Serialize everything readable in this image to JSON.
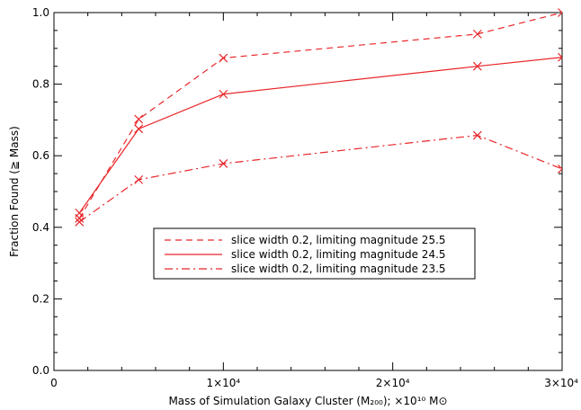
{
  "chart_data": {
    "type": "line",
    "xlabel": "Mass of Simulation Galaxy Cluster (M₂₀₀); ×10¹⁰ M⊙",
    "ylabel": "Fraction Found (≧ Mass)",
    "xlim": [
      0,
      30000
    ],
    "ylim": [
      0,
      1.0
    ],
    "x_ticks": [
      {
        "value": 0,
        "label": "0"
      },
      {
        "value": 10000,
        "label": "1×10⁴"
      },
      {
        "value": 20000,
        "label": "2×10⁴"
      },
      {
        "value": 30000,
        "label": "3×10⁴"
      }
    ],
    "y_ticks": [
      {
        "value": 0,
        "label": "0.0"
      },
      {
        "value": 0.2,
        "label": "0.2"
      },
      {
        "value": 0.4,
        "label": "0.4"
      },
      {
        "value": 0.6,
        "label": "0.6"
      },
      {
        "value": 0.8,
        "label": "0.8"
      },
      {
        "value": 1.0,
        "label": "1.0"
      }
    ],
    "grid": false,
    "legend_position": "center-right",
    "x": [
      1500,
      5000,
      10000,
      25000,
      30000
    ],
    "series": [
      {
        "name": "slice width 0.2, limiting magnitude 25.5",
        "line_style": "dashed",
        "values": [
          0.425,
          0.702,
          0.873,
          0.94,
          1.0
        ]
      },
      {
        "name": "slice width 0.2, limiting magnitude 24.5",
        "line_style": "solid",
        "values": [
          0.44,
          0.675,
          0.772,
          0.85,
          0.875
        ]
      },
      {
        "name": "slice width 0.2, limiting magnitude 23.5",
        "line_style": "dashdot",
        "values": [
          0.415,
          0.533,
          0.578,
          0.657,
          0.563
        ]
      }
    ],
    "color": "#e8262a"
  }
}
